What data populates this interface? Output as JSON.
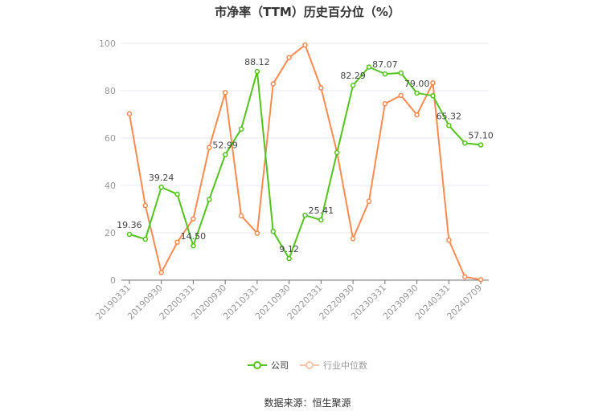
{
  "chart_data": {
    "type": "line",
    "title": "市净率（TTM）历史百分位（%）",
    "categories": [
      "20190331",
      "20190630",
      "20190930",
      "20191231",
      "20200331",
      "20200630",
      "20200930",
      "20201231",
      "20210331",
      "20210630",
      "20210930",
      "20211231",
      "20220331",
      "20220630",
      "20220930",
      "20221231",
      "20230331",
      "20230630",
      "20230930",
      "20231231",
      "20240331",
      "20240630",
      "20240709"
    ],
    "x_tick_labels": [
      "20190331",
      "20190930",
      "20200331",
      "20200930",
      "20210331",
      "20210930",
      "20220331",
      "20220930",
      "20230331",
      "20230930",
      "20240331",
      "20240709"
    ],
    "ylim": [
      0,
      100
    ],
    "y_ticks": [
      0,
      20,
      40,
      60,
      80,
      100
    ],
    "grid": true,
    "legend_position": "bottom",
    "series": [
      {
        "name": "公司",
        "color": "#52c41a",
        "values": [
          19.36,
          17.3,
          39.24,
          36.3,
          14.5,
          34.1,
          52.99,
          63.8,
          88.12,
          20.6,
          9.12,
          27.4,
          25.41,
          53.9,
          82.29,
          90.0,
          87.07,
          87.5,
          79.0,
          77.9,
          65.32,
          57.9,
          57.1
        ],
        "data_labels": {
          "0": "19.36",
          "2": "39.24",
          "4": "14.50",
          "6": "52.99",
          "8": "88.12",
          "10": "9.12",
          "12": "25.41",
          "14": "82.29",
          "16": "87.07",
          "18": "79.00",
          "20": "65.32",
          "22": "57.10"
        }
      },
      {
        "name": "行业中位数",
        "color": "#ff8a50",
        "values": [
          70.3,
          31.5,
          3.2,
          16.0,
          25.9,
          56.0,
          79.2,
          27.2,
          19.8,
          82.9,
          94.0,
          99.3,
          81.2,
          53.9,
          17.5,
          33.3,
          74.5,
          78.0,
          69.8,
          83.3,
          16.9,
          1.4,
          0.2
        ]
      }
    ]
  },
  "legend": {
    "company": "公司",
    "industry": "行业中位数"
  },
  "source": "数据来源：恒生聚源"
}
